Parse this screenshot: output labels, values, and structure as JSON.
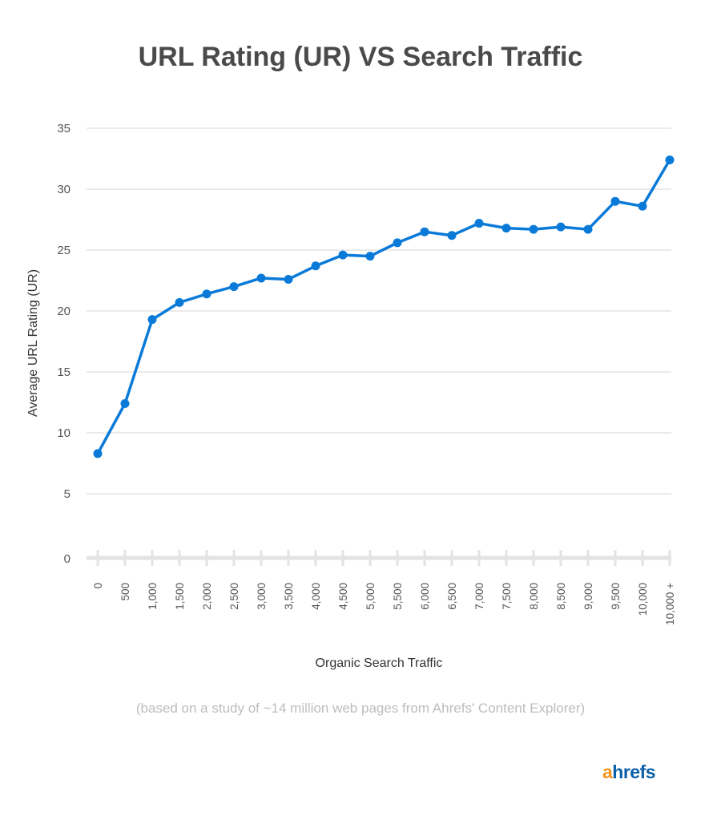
{
  "chart_data": {
    "type": "line",
    "title": "URL Rating (UR) VS Search Traffic",
    "xlabel": "Organic Search Traffic",
    "ylabel": "Average URL Rating (UR)",
    "categories": [
      "0",
      "500",
      "1,000",
      "1,500",
      "2,000",
      "2,500",
      "3,000",
      "3,500",
      "4,000",
      "4,500",
      "5,000",
      "5,500",
      "6,000",
      "6,500",
      "7,000",
      "7,500",
      "8,000",
      "8,500",
      "9,000",
      "9,500",
      "10,000",
      "10,000 +"
    ],
    "series": [
      {
        "values": [
          8.3,
          12.4,
          19.3,
          20.7,
          21.4,
          22.0,
          22.7,
          22.6,
          23.7,
          24.6,
          24.5,
          25.6,
          26.5,
          26.2,
          27.2,
          26.8,
          26.7,
          26.9,
          26.7,
          29.0,
          28.6,
          32.4
        ]
      }
    ],
    "yticks": [
      "0",
      "5",
      "10",
      "15",
      "20",
      "25",
      "30",
      "35"
    ],
    "ylim": [
      0,
      35
    ],
    "grid": true,
    "legend": "none",
    "line_color": "#0a7ad8",
    "note": "(based on a study of ~14 million web pages from Ahrefs' Content Explorer)"
  },
  "logo": {
    "first": "a",
    "rest": "hrefs"
  }
}
